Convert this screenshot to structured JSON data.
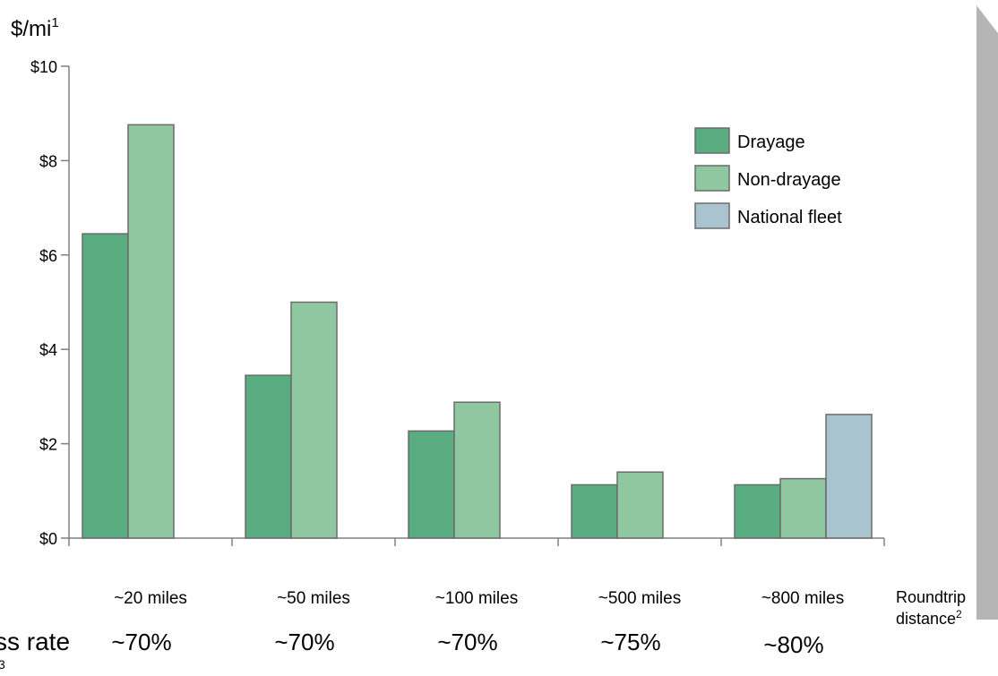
{
  "colors": {
    "drayage": "#5aad80",
    "non_drayage": "#8fc7a0",
    "national_fleet": "#a9c4cf",
    "bar_stroke": "#6b6b6b",
    "arrow_fill": "#b5b5b5",
    "axis": "#808080"
  },
  "chart_data": {
    "type": "bar",
    "y_unit_label": "$/mi",
    "y_unit_footnote": "1",
    "ylim": [
      0,
      10
    ],
    "y_ticks": [
      0,
      2,
      4,
      6,
      8,
      10
    ],
    "y_tick_labels": [
      "$0",
      "$2",
      "$4",
      "$6",
      "$8",
      "$10"
    ],
    "categories": [
      "~20 miles",
      "~50 miles",
      "~100 miles",
      "~500 miles",
      "~800 miles"
    ],
    "x_axis_label_line1": "Roundtrip",
    "x_axis_label_line2": "distance",
    "x_axis_label_footnote": "2",
    "series": [
      {
        "name": "Drayage",
        "color_key": "drayage",
        "values": [
          6.45,
          3.45,
          2.27,
          1.13,
          1.13
        ]
      },
      {
        "name": "Non-drayage",
        "color_key": "non_drayage",
        "values": [
          8.76,
          5.0,
          2.88,
          1.4,
          1.26
        ]
      },
      {
        "name": "National fleet",
        "color_key": "national_fleet",
        "values": [
          null,
          null,
          null,
          null,
          2.62
        ]
      }
    ],
    "legend_position": "top-right",
    "grid": false
  },
  "bottom_row": {
    "label_visible": "ss rate",
    "label_footnote": "3",
    "values": [
      "~70%",
      "~70%",
      "~70%",
      "~75%",
      "~80%"
    ]
  }
}
